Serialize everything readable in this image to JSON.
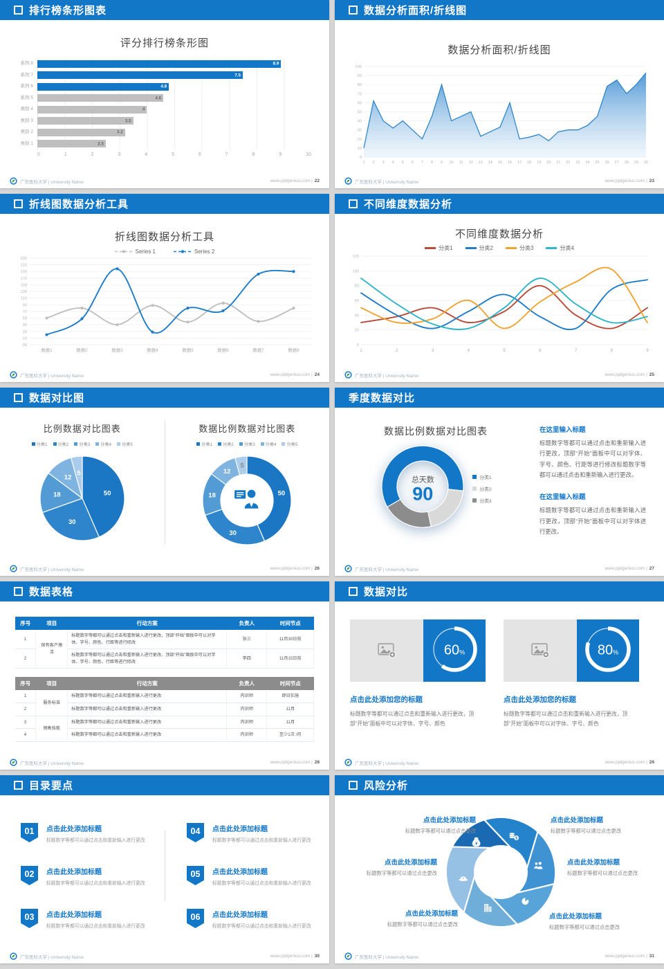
{
  "theme": {
    "accent": "#1377C8",
    "bar_gray": "#BFBFBF",
    "table2_header_bg": "#8C8C8C",
    "page_bg": "#D6D6D6"
  },
  "footer": {
    "brand": "广东医科大学 | University Name",
    "site": "www.pptgenius.com"
  },
  "slides": [
    {
      "header": "排行榜条形图表",
      "page": "22",
      "title": "评分排行榜条形图"
    },
    {
      "header": "数据分析面积/折线图",
      "page": "23",
      "title": "数据分析面积/折线图"
    },
    {
      "header": "折线图数据分析工具",
      "page": "24",
      "title": "折线图数据分析工具"
    },
    {
      "header": "不同维度数据分析",
      "page": "25",
      "title": "不同维度数据分析"
    },
    {
      "header": "数据对比图",
      "page": "26",
      "left_title": "比例数据对比图表",
      "right_title": "数据比例数据对比图表"
    },
    {
      "header": "季度数据对比",
      "page": "27",
      "title": "数据比例数据对比图表",
      "center_label": "总天数",
      "center_value": "90",
      "blocks": [
        {
          "heading": "在这里输入标题",
          "body": "标题数字等都可以通过点击和重新输入进行更改，顶部“开始”面板中可以对字体、字号、颜色、行距等进行修改标题数字等都可以通过点击和重新输入进行更改。"
        },
        {
          "heading": "在这里输入标题",
          "body": "标题数字等都可以通过点击和重新输入进行更改，顶部“开始”面板中可以对字体进行更改。"
        }
      ]
    },
    {
      "header": "数据表格",
      "page": "28",
      "table1": {
        "columns": [
          "序号",
          "项目",
          "行动方案",
          "负责人",
          "时间节点"
        ],
        "rows": [
          {
            "no": "1",
            "project": "保有客户激活",
            "plan": "标题数字等都可以通过点击和重新输入进行更改，顶部“开始”面板中可以对字体、字号、颜色、行距等进行修改",
            "owner": "张三",
            "deadline": "11月30日前"
          },
          {
            "no": "2",
            "plan": "标题数字等都可以通过点击和重新输入进行更改，顶部“开始”面板中可以对字体、字号、颜色、行距等进行修改",
            "owner": "李四",
            "deadline": "11月15日前"
          }
        ]
      },
      "table2": {
        "columns": [
          "序号",
          "项目",
          "行动方案",
          "负责人",
          "时间节点"
        ],
        "rows": [
          {
            "no": "1",
            "project": "服务标准",
            "plan": "标题数字等都可以通过点击和重新输入进行更改",
            "owner": "内训师",
            "deadline": "即日实施"
          },
          {
            "no": "2",
            "plan": "标题数字等都可以通过点击和重新输入进行更改",
            "owner": "内训师",
            "deadline": "11月"
          },
          {
            "no": "3",
            "project": "销售技能",
            "plan": "标题数字等都可以通过点击和重新输入进行更改",
            "owner": "内训师",
            "deadline": "11月"
          },
          {
            "no": "4",
            "plan": "标题数字等都可以通过点击和重新输入进行更改",
            "owner": "内训师",
            "deadline": "至少1次 /月"
          }
        ]
      }
    },
    {
      "header": "数据对比",
      "page": "29",
      "panels": [
        {
          "title": "点击此处添加您的标题",
          "body": "标题数字等都可以通过点击和重新输入进行更改，顶部“开始”面板中可以对字体、字号、颜色"
        },
        {
          "title": "点击此处添加您的标题",
          "body": "标题数字等都可以通过点击和重新输入进行更改，顶部“开始”面板中可以对字体、字号、颜色"
        }
      ]
    },
    {
      "header": "目录要点",
      "page": "30",
      "items": [
        {
          "num": "01",
          "title": "点击此处添加标题",
          "body": "标题数字等都可以通过点击和重新输入进行更改"
        },
        {
          "num": "04",
          "title": "点击此处添加标题",
          "body": "标题数字等都可以通过点击和重新输入进行更改"
        },
        {
          "num": "02",
          "title": "点击此处添加标题",
          "body": "标题数字等都可以通过点击和重新输入进行更改"
        },
        {
          "num": "05",
          "title": "点击此处添加标题",
          "body": "标题数字等都可以通过点击和重新输入进行更改"
        },
        {
          "num": "03",
          "title": "点击此处添加标题",
          "body": "标题数字等都可以通过点击和重新输入进行更改"
        },
        {
          "num": "06",
          "title": "点击此处添加标题",
          "body": "标题数字等都可以通过点击和重新输入进行更改"
        }
      ]
    },
    {
      "header": "风险分析",
      "page": "31",
      "petal_colors": [
        "#1A6AB3",
        "#2583CB",
        "#4093D2",
        "#58A4D9",
        "#6FAED9",
        "#97C0E5"
      ],
      "icons": [
        "money-bag",
        "coins",
        "people",
        "pie-chart",
        "building",
        "helmet"
      ],
      "items": [
        {
          "title": "点击此处添加标题",
          "body": "标题数字等都可以通过点击更改"
        },
        {
          "title": "点击此处添加标题",
          "body": "标题数字等都可以通过点击更改"
        },
        {
          "title": "点击此处添加标题",
          "body": "标题数字等都可以通过点击更改"
        },
        {
          "title": "点击此处添加标题",
          "body": "标题数字等都可以通过点击更改"
        },
        {
          "title": "点击此处添加标题",
          "body": "标题数字等都可以通过点击更改"
        },
        {
          "title": "点击此处添加标题",
          "body": "标题数字等都可以通过点击更改"
        }
      ]
    }
  ],
  "chart_data": [
    {
      "id": "bar-22",
      "type": "bar",
      "orientation": "horizontal",
      "title": "评分排行榜条形图",
      "categories": [
        "系列 8",
        "系列 7",
        "系列 6",
        "系列 5",
        "类别 4",
        "类别 3",
        "类别 2",
        "类别 1"
      ],
      "values": [
        8.9,
        7.5,
        4.8,
        4.6,
        4,
        3.5,
        3.2,
        2.5
      ],
      "bar_colors": [
        "#1377C8",
        "#1377C8",
        "#1377C8",
        "#BFBFBF",
        "#BFBFBF",
        "#BFBFBF",
        "#BFBFBF",
        "#BFBFBF"
      ],
      "value_colors": [
        "#fff",
        "#fff",
        "#fff",
        "#666",
        "#666",
        "#666",
        "#666",
        "#666"
      ],
      "xlim": [
        0,
        10
      ],
      "xticks": [
        0,
        1,
        2,
        3,
        4,
        5,
        6,
        7,
        8,
        9,
        10
      ],
      "grid": true
    },
    {
      "id": "area-23",
      "type": "area",
      "title": "数据分析面积/折线图",
      "x": [
        1,
        2,
        3,
        4,
        5,
        6,
        7,
        8,
        9,
        10,
        11,
        12,
        13,
        14,
        15,
        16,
        17,
        18,
        19,
        20,
        21,
        22,
        23,
        24,
        25,
        26,
        27,
        28,
        29,
        30
      ],
      "values": [
        10,
        62,
        40,
        32,
        40,
        30,
        20,
        45,
        80,
        40,
        45,
        50,
        23,
        28,
        33,
        60,
        20,
        22,
        25,
        18,
        28,
        30,
        30,
        35,
        45,
        78,
        85,
        70,
        80,
        93
      ],
      "ylim": [
        0,
        100
      ],
      "ytick_step": 10,
      "line_color": "#2E86C8",
      "fill_top": "#4A94D4",
      "fill_bottom": "#E3F0FA"
    },
    {
      "id": "line-24",
      "type": "line",
      "smooth": true,
      "markers": true,
      "title": "折线图数据分析工具",
      "categories": [
        "数据1",
        "数据2",
        "数据3",
        "数据4",
        "数据5",
        "数据6",
        "数据7",
        "数据8"
      ],
      "series": [
        {
          "name": "Series 1",
          "color": "#BFBFBF",
          "values": [
            50,
            80,
            30,
            88,
            38,
            95,
            40,
            80
          ]
        },
        {
          "name": "Series 2",
          "color": "#1E7CC8",
          "values": [
            0,
            48,
            198,
            8,
            80,
            72,
            182,
            190
          ]
        }
      ],
      "ylim": [
        -30,
        230
      ],
      "ytick_step": 20,
      "legend_position": "top"
    },
    {
      "id": "line-25",
      "type": "line",
      "smooth": true,
      "markers": false,
      "title": "不同维度数据分析",
      "x": [
        1,
        2,
        3,
        4,
        5,
        6,
        7,
        8,
        9
      ],
      "series": [
        {
          "name": "分类1",
          "color": "#B84A39",
          "values": [
            30,
            38,
            50,
            30,
            45,
            80,
            40,
            22,
            50
          ]
        },
        {
          "name": "分类2",
          "color": "#1E7CC8",
          "values": [
            70,
            40,
            22,
            45,
            68,
            38,
            22,
            75,
            88
          ]
        },
        {
          "name": "分类3",
          "color": "#F0A330",
          "values": [
            50,
            30,
            35,
            60,
            22,
            58,
            85,
            102,
            30
          ]
        },
        {
          "name": "分类4",
          "color": "#2FB4C9",
          "values": [
            90,
            55,
            28,
            22,
            50,
            90,
            55,
            30,
            38
          ]
        }
      ],
      "ylim": [
        0,
        120
      ],
      "ytick_step": 20,
      "legend_position": "top"
    },
    {
      "id": "pie-26",
      "type": "pie",
      "title": "比例数据对比图表",
      "labels": [
        "分类1",
        "分类2",
        "分类3",
        "分类4",
        "分类5"
      ],
      "values": [
        50,
        30,
        18,
        12,
        5
      ],
      "colors": [
        "#1B76C4",
        "#2F85CC",
        "#539BD5",
        "#7FB3E0",
        "#ABCCEB"
      ]
    },
    {
      "id": "donut-26",
      "type": "donut",
      "title": "数据比例数据对比图表",
      "labels": [
        "分类1",
        "分类2",
        "分类3",
        "分类4",
        "分类5"
      ],
      "values": [
        50,
        30,
        18,
        12,
        5
      ],
      "colors": [
        "#1B76C4",
        "#2F85CC",
        "#539BD5",
        "#7FB3E0",
        "#ABCCEB"
      ],
      "label_colors": [
        "#fff",
        "#fff",
        "#fff",
        "#fff",
        "#8a8a8a"
      ],
      "center_icon": "presenter"
    },
    {
      "id": "donut-27",
      "type": "donut",
      "title": "数据比例数据对比图表",
      "labels": [
        "分类1",
        "分类2",
        "分类3"
      ],
      "values": [
        60,
        20,
        20
      ],
      "colors": [
        "#1377C8",
        "#D9D9D9",
        "#8C8C8C"
      ],
      "start_angle": 240,
      "center_label": "总天数",
      "center_value": "90"
    },
    {
      "id": "ring-60",
      "type": "progress",
      "value": 60,
      "suffix": "%"
    },
    {
      "id": "ring-80",
      "type": "progress",
      "value": 80,
      "suffix": "%"
    }
  ]
}
